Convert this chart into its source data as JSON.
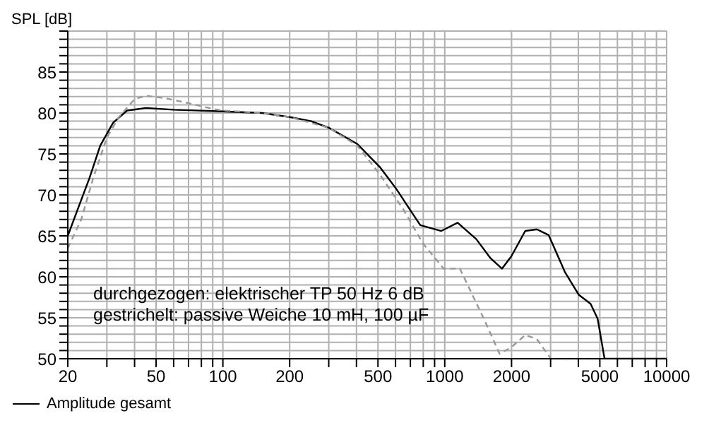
{
  "chart_data": {
    "type": "line",
    "ylabel": "SPL [dB]",
    "log": "x",
    "grid": true,
    "legend": "bottom left",
    "marker": "none",
    "xlim": [
      20,
      10000
    ],
    "ylim": [
      50,
      90
    ],
    "xticks": [
      20,
      {
        "value": 30,
        "label": null
      },
      {
        "value": 40,
        "label": null
      },
      50,
      {
        "value": 60,
        "label": null
      },
      {
        "value": 70,
        "label": null
      },
      {
        "value": 80,
        "label": null
      },
      {
        "value": 90,
        "label": null
      },
      100,
      200,
      {
        "value": 300,
        "label": null
      },
      {
        "value": 400,
        "label": null
      },
      500,
      {
        "value": 600,
        "label": null
      },
      {
        "value": 700,
        "label": null
      },
      {
        "value": 800,
        "label": null
      },
      {
        "value": 900,
        "label": null
      },
      1000,
      2000,
      {
        "value": 3000,
        "label": null
      },
      {
        "value": 4000,
        "label": null
      },
      5000,
      {
        "value": 6000,
        "label": null
      },
      {
        "value": 7000,
        "label": null
      },
      {
        "value": 8000,
        "label": null
      },
      {
        "value": 9000,
        "label": null
      },
      10000
    ],
    "yticks": [
      50,
      {
        "value": 51,
        "label": null
      },
      {
        "value": 52,
        "label": null
      },
      {
        "value": 53,
        "label": null
      },
      {
        "value": 54,
        "label": null
      },
      55,
      {
        "value": 56,
        "label": null
      },
      {
        "value": 57,
        "label": null
      },
      {
        "value": 58,
        "label": null
      },
      {
        "value": 59,
        "label": null
      },
      60,
      {
        "value": 61,
        "label": null
      },
      {
        "value": 62,
        "label": null
      },
      {
        "value": 63,
        "label": null
      },
      {
        "value": 64,
        "label": null
      },
      65,
      {
        "value": 66,
        "label": null
      },
      {
        "value": 67,
        "label": null
      },
      {
        "value": 68,
        "label": null
      },
      {
        "value": 69,
        "label": null
      },
      70,
      {
        "value": 71,
        "label": null
      },
      {
        "value": 72,
        "label": null
      },
      {
        "value": 73,
        "label": null
      },
      {
        "value": 74,
        "label": null
      },
      75,
      {
        "value": 76,
        "label": null
      },
      {
        "value": 77,
        "label": null
      },
      {
        "value": 78,
        "label": null
      },
      {
        "value": 79,
        "label": null
      },
      80,
      {
        "value": 81,
        "label": null
      },
      {
        "value": 82,
        "label": null
      },
      {
        "value": 83,
        "label": null
      },
      {
        "value": 84,
        "label": null
      },
      85,
      {
        "value": 86,
        "label": null
      },
      {
        "value": 87,
        "label": null
      },
      {
        "value": 88,
        "label": null
      },
      {
        "value": 89,
        "label": null
      },
      {
        "value": 90,
        "label": null
      }
    ],
    "annotations": [
      "durchgezogen: elektrischer TP 50 Hz 6 dB",
      "gestrichelt: passive Weiche 10 mH, 100 µF"
    ],
    "series": [
      {
        "name": "Amplitude gesamt",
        "color": "#000000",
        "line_style": "solid",
        "x": [
          20,
          22,
          25,
          28,
          32,
          37,
          45,
          60,
          100,
          150,
          200,
          250,
          300,
          404,
          510,
          606,
          701,
          776,
          965,
          1143,
          1387,
          1604,
          1811,
          1995,
          2306,
          2602,
          2938,
          3478,
          4021,
          4543,
          4885,
          5250,
          10000
        ],
        "values": [
          65,
          68,
          72,
          76,
          78.8,
          80.3,
          80.6,
          80.4,
          80.2,
          80,
          79.5,
          79,
          78.2,
          76.2,
          73.4,
          70.7,
          68.1,
          66.3,
          65.6,
          66.6,
          64.6,
          62.3,
          61,
          62.5,
          65.6,
          65.8,
          65.1,
          60.6,
          57.8,
          56.7,
          54.9,
          50,
          50
        ]
      },
      {
        "color": "#999999",
        "line_style": "dashed",
        "x": [
          20,
          23,
          26,
          30,
          34,
          40,
          45,
          55,
          70,
          90,
          100,
          150,
          200,
          300,
          404,
          510,
          655,
          796,
          989,
          1170,
          1529,
          1767,
          1995,
          2306,
          2602,
          3008,
          5000
        ],
        "values": [
          63.5,
          67,
          72,
          77,
          79.5,
          81.7,
          82.1,
          81.8,
          81.2,
          80.5,
          80.3,
          80,
          79.5,
          78.2,
          76,
          72.5,
          68.1,
          64.1,
          61,
          61,
          54.4,
          50.6,
          51.4,
          52.9,
          52.4,
          50,
          50
        ]
      }
    ]
  }
}
